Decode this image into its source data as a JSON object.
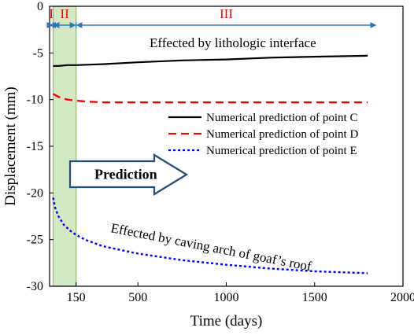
{
  "chart_data": {
    "type": "line",
    "xlabel": "Time (days)",
    "ylabel": "Displacement (mm)",
    "xlim": [
      0,
      2000
    ],
    "ylim": [
      -30,
      0
    ],
    "x_ticks": [
      150,
      500,
      1000,
      1500,
      2000
    ],
    "y_ticks": [
      0,
      -5,
      -10,
      -15,
      -20,
      -25,
      -30
    ],
    "grid": false,
    "legend_position": "right",
    "series": [
      {
        "name": "Numerical prediction of point C",
        "color": "#000000",
        "style": "solid",
        "x": [
          20,
          50,
          100,
          150,
          300,
          500,
          750,
          1000,
          1250,
          1500,
          1800
        ],
        "y": [
          -6.4,
          -6.4,
          -6.3,
          -6.3,
          -6.2,
          -6.0,
          -5.8,
          -5.7,
          -5.5,
          -5.4,
          -5.3
        ]
      },
      {
        "name": "Numerical prediction of point D",
        "color": "#ff0000",
        "style": "dashed",
        "x": [
          20,
          50,
          100,
          150,
          200,
          300,
          500,
          1000,
          1500,
          1800
        ],
        "y": [
          -9.4,
          -9.7,
          -10.0,
          -10.1,
          -10.2,
          -10.3,
          -10.3,
          -10.3,
          -10.3,
          -10.3
        ]
      },
      {
        "name": "Numerical prediction of point E",
        "color": "#0000ff",
        "style": "dotted",
        "x": [
          20,
          30,
          50,
          80,
          120,
          150,
          200,
          300,
          500,
          750,
          1000,
          1250,
          1500,
          1800
        ],
        "y": [
          -20.5,
          -21.5,
          -22.5,
          -23.4,
          -24.1,
          -24.5,
          -25.0,
          -25.7,
          -26.5,
          -27.2,
          -27.7,
          -28.1,
          -28.4,
          -28.6
        ]
      }
    ],
    "phases": [
      {
        "label": "I",
        "color": "#ff0000",
        "from": 0,
        "to": 20
      },
      {
        "label": "II",
        "color": "#ff0000",
        "from": 20,
        "to": 150
      },
      {
        "label": "III",
        "color": "#ff0000",
        "from": 150,
        "to": 1850
      }
    ],
    "phase_arrow_color": "#2e75b6",
    "highlight_band": {
      "from": 20,
      "to": 150,
      "color": "#a9d18e"
    },
    "annotations": {
      "top": "Effected by lithologic interface",
      "bottom": "Effected by caving arch of goaf’s roof",
      "prediction": "Prediction"
    },
    "prediction_arrow_color": "#1f4e79"
  }
}
